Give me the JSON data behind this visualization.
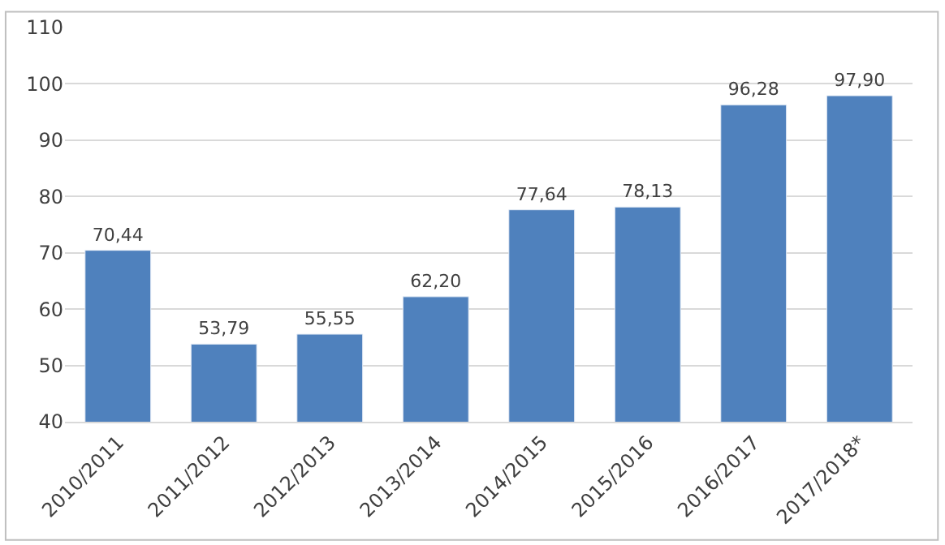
{
  "chart_data": {
    "type": "bar",
    "categories": [
      "2010/2011",
      "2011/2012",
      "2012/2013",
      "2013/2014",
      "2014/2015",
      "2015/2016",
      "2016/2017",
      "2017/2018*"
    ],
    "values": [
      70.44,
      53.79,
      55.55,
      62.2,
      77.64,
      78.13,
      96.28,
      97.9
    ],
    "value_labels": [
      "70,44",
      "53,79",
      "55,55",
      "62,20",
      "77,64",
      "78,13",
      "96,28",
      "97,90"
    ],
    "color": "#4f81bd",
    "ylim": [
      40,
      110
    ],
    "yticks": [
      40,
      50,
      60,
      70,
      80,
      90,
      100,
      110
    ],
    "grid": "y",
    "legend": false
  }
}
